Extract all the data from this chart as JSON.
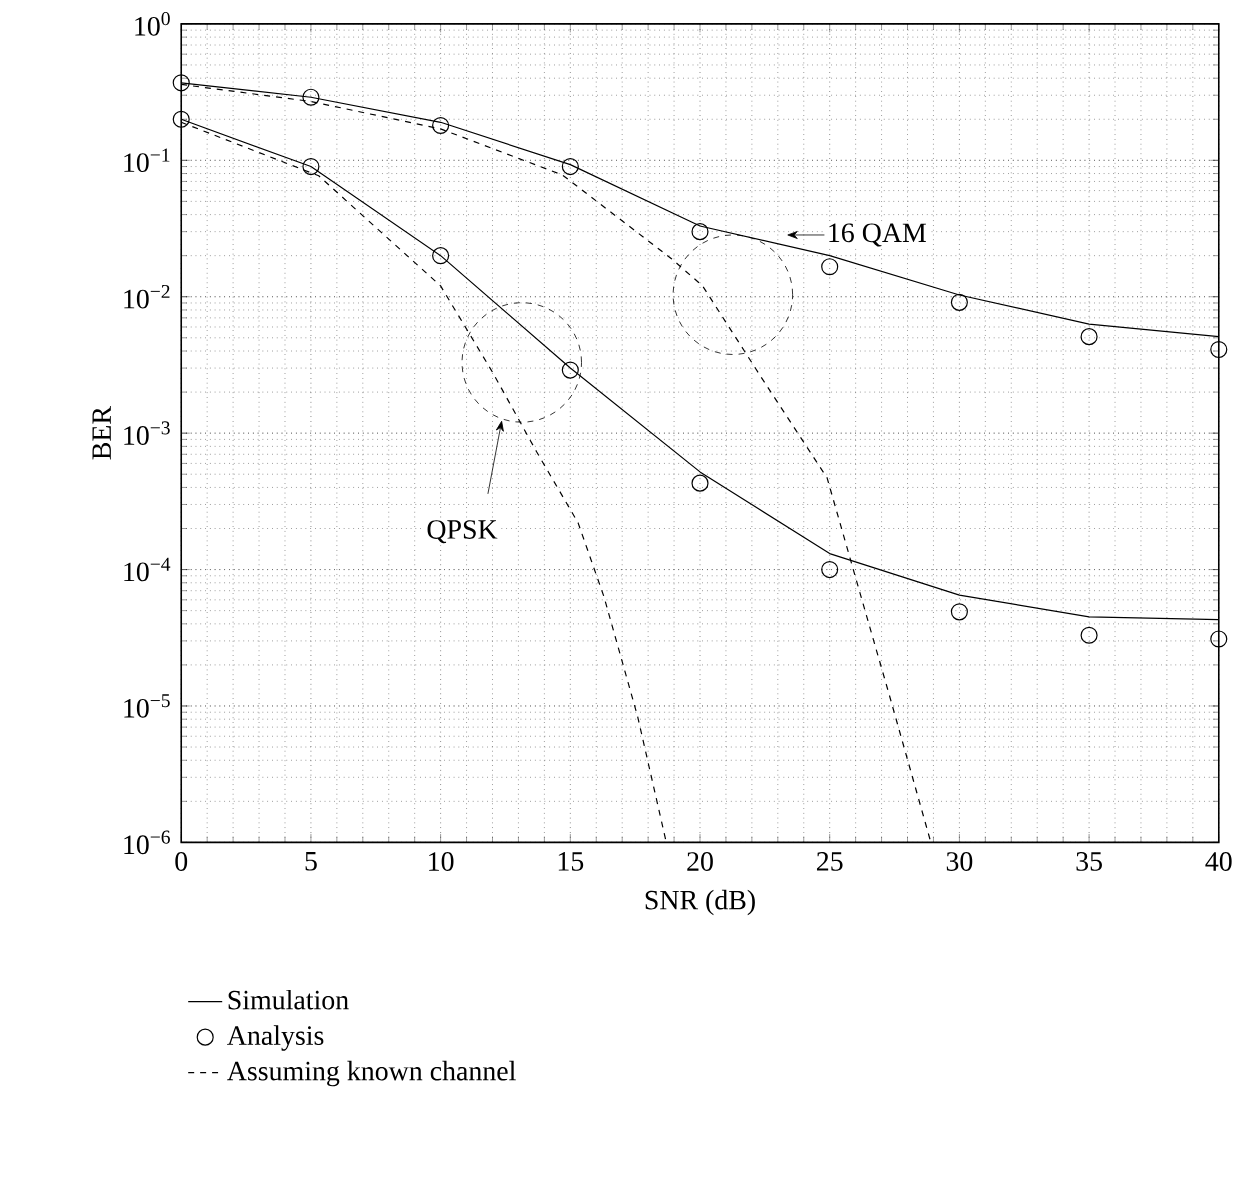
{
  "chart_data": {
    "type": "line",
    "xlabel": "SNR (dB)",
    "ylabel": "BER",
    "log": "y",
    "grid": true,
    "legend": "bottom",
    "xlim": [
      0,
      40
    ],
    "xticks": [
      0,
      5,
      10,
      15,
      20,
      25,
      30,
      35,
      40
    ],
    "ylim": [
      1e-06,
      1
    ],
    "yticks": [
      {
        "value": 1e-06,
        "label": "10$^{−6}$"
      },
      {
        "value": 1e-05,
        "label": "10$^{−5}$"
      },
      {
        "value": 0.0001,
        "label": "10$^{−4}$"
      },
      {
        "value": 0.001,
        "label": "10$^{−3}$"
      },
      {
        "value": 0.01,
        "label": "10$^{−2}$"
      },
      {
        "value": 0.1,
        "label": "10$^{−1}$"
      },
      {
        "value": 1,
        "label": "10$^{0}$"
      }
    ],
    "series": [
      {
        "name": "Simulation",
        "color": "#000000",
        "line_style": "solid",
        "marker": "none",
        "x": [
          0,
          5,
          10,
          15,
          20,
          25,
          30,
          35,
          40
        ],
        "values": [
          0.37,
          0.29,
          0.19,
          0.093,
          0.033,
          0.02,
          0.0103,
          0.0063,
          0.0051
        ]
      },
      {
        "name": "Analysis",
        "type": "scatter",
        "color": "#000000",
        "marker": "circle",
        "x": [
          0,
          5,
          10,
          15,
          20,
          25,
          30,
          35,
          40
        ],
        "values": [
          0.37,
          0.29,
          0.18,
          0.09,
          0.03,
          0.0166,
          0.0091,
          0.0051,
          0.0041
        ]
      },
      {
        "name": "Assuming known channel",
        "color": "#000000",
        "line_style": "dashed",
        "marker": "none",
        "x": [
          0,
          5,
          10,
          14.7,
          18.9,
          20.1,
          22.4,
          24.9,
          26,
          27.3,
          28.9
        ],
        "values": [
          0.36,
          0.27,
          0.17,
          0.078,
          0.019,
          0.012,
          0.0025,
          0.00047,
          8.7e-05,
          1.2e-05,
          1e-06
        ]
      },
      {
        "color": "#000000",
        "line_style": "solid",
        "marker": "none",
        "x": [
          0,
          5,
          10,
          15,
          20,
          25,
          30,
          35,
          40
        ],
        "values": [
          0.2,
          0.09,
          0.02,
          0.003,
          0.00052,
          0.000131,
          6.5e-05,
          4.5e-05,
          4.3e-05
        ]
      },
      {
        "type": "scatter",
        "color": "#000000",
        "marker": "circle",
        "x": [
          0,
          5,
          10,
          15,
          20,
          25,
          30,
          35,
          40
        ],
        "values": [
          0.2,
          0.09,
          0.02,
          0.0029,
          0.00043,
          0.0001,
          4.9e-05,
          3.3e-05,
          3.1e-05
        ]
      },
      {
        "color": "#000000",
        "line_style": "dashed",
        "marker": "none",
        "x": [
          0,
          5.3,
          10,
          12,
          13.7,
          15.3,
          16.3,
          17.6,
          18.7
        ],
        "values": [
          0.19,
          0.077,
          0.012,
          0.0028,
          0.00073,
          0.00022,
          6.3e-05,
          8.3e-06,
          1e-06
        ]
      }
    ],
    "annotations": [
      "QPSK",
      "16 QAM"
    ]
  }
}
